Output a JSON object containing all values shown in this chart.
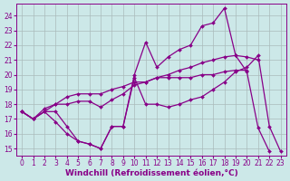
{
  "background_color": "#cce8e8",
  "grid_color": "#aabbbb",
  "line_color": "#880088",
  "marker": "D",
  "markersize": 2.0,
  "linewidth": 0.9,
  "xlabel": "Windchill (Refroidissement éolien,°C)",
  "xlabel_fontsize": 6.5,
  "tick_fontsize": 5.5,
  "xlim": [
    -0.5,
    23.5
  ],
  "ylim": [
    14.5,
    24.8
  ],
  "yticks": [
    15,
    16,
    17,
    18,
    19,
    20,
    21,
    22,
    23,
    24
  ],
  "xticks": [
    0,
    1,
    2,
    3,
    4,
    5,
    6,
    7,
    8,
    9,
    10,
    11,
    12,
    13,
    14,
    15,
    16,
    17,
    18,
    19,
    20,
    21,
    22,
    23
  ],
  "series": [
    [
      17.5,
      17.0,
      17.5,
      16.8,
      16.0,
      15.5,
      15.3,
      15.0,
      16.5,
      16.5,
      20.0,
      22.2,
      20.5,
      21.2,
      21.7,
      22.0,
      23.3,
      23.5,
      24.5,
      21.3,
      20.2,
      16.4,
      14.8,
      null
    ],
    [
      17.5,
      17.0,
      17.5,
      17.5,
      16.5,
      15.5,
      15.3,
      15.0,
      16.5,
      16.5,
      19.8,
      18.0,
      18.0,
      17.8,
      18.0,
      18.3,
      18.5,
      19.0,
      19.5,
      20.2,
      20.5,
      21.3,
      16.5,
      14.8
    ],
    [
      17.5,
      17.0,
      17.7,
      18.0,
      18.0,
      18.2,
      18.2,
      17.8,
      18.3,
      18.7,
      19.3,
      19.5,
      19.8,
      20.0,
      20.3,
      20.5,
      20.8,
      21.0,
      21.2,
      21.3,
      21.2,
      21.0,
      null,
      null
    ],
    [
      17.5,
      17.0,
      17.5,
      18.0,
      18.5,
      18.7,
      18.7,
      18.7,
      19.0,
      19.2,
      19.5,
      19.5,
      19.8,
      19.8,
      19.8,
      19.8,
      20.0,
      20.0,
      20.2,
      20.3,
      20.3,
      null,
      null,
      null
    ]
  ]
}
